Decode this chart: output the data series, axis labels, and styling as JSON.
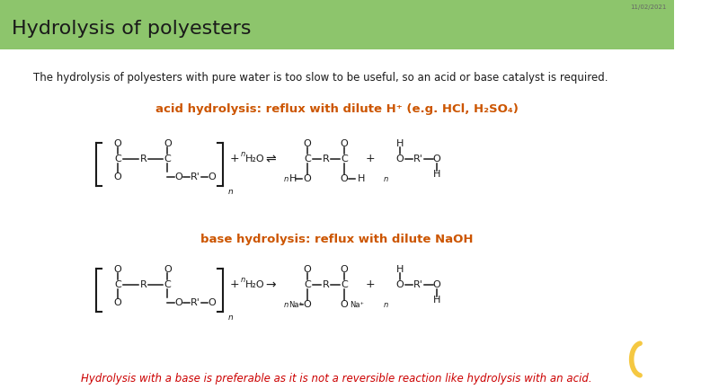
{
  "title": "Hydrolysis of polyesters",
  "title_bg": "#8dc56c",
  "title_color": "#1a1a1a",
  "bg_color": "#ffffff",
  "date_text": "11/02/2021",
  "intro_text": "The hydrolysis of polyesters with pure water is too slow to be useful, so an acid or base catalyst is required.",
  "acid_label": "acid hydrolysis: reflux with dilute H⁺ (e.g. HCl, H₂SO₄)",
  "base_label": "base hydrolysis: reflux with dilute NaOH",
  "footer_text": "Hydrolysis with a base is preferable as it is not a reversible reaction like hydrolysis with an acid.",
  "orange_color": "#cc5500",
  "red_color": "#cc0000",
  "black_color": "#1a1a1a",
  "curl_color": "#f5c842",
  "title_fontsize": 16,
  "intro_fontsize": 8.5,
  "label_fontsize": 9.5,
  "chem_fontsize": 8,
  "footer_fontsize": 8.5
}
